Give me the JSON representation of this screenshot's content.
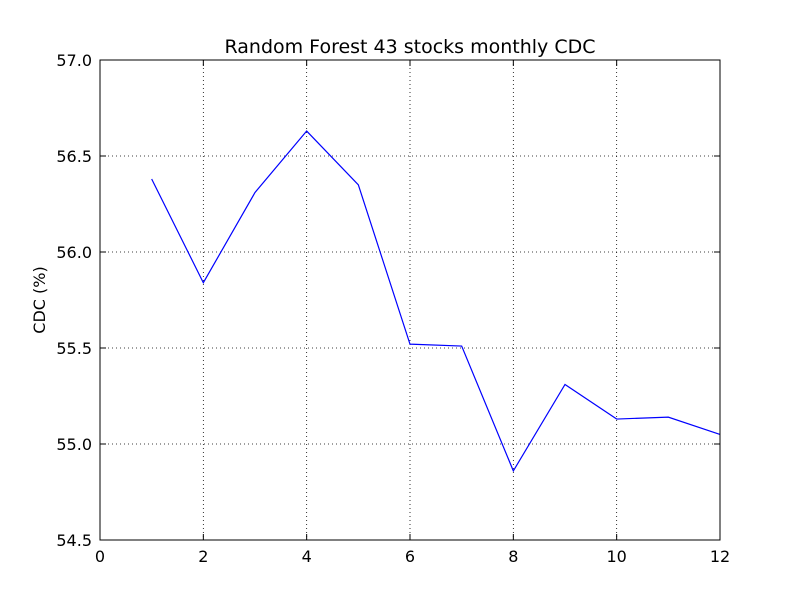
{
  "chart_data": {
    "type": "line",
    "title": "Random Forest 43 stocks monthly CDC",
    "xlabel": "",
    "ylabel": "CDC (%)",
    "xlim": [
      0,
      12
    ],
    "ylim": [
      54.5,
      57.0
    ],
    "x_ticks": [
      0,
      2,
      4,
      6,
      8,
      10,
      12
    ],
    "x_tick_labels": [
      "0",
      "2",
      "4",
      "6",
      "8",
      "10",
      "12"
    ],
    "y_ticks": [
      54.5,
      55.0,
      55.5,
      56.0,
      56.5,
      57.0
    ],
    "y_tick_labels": [
      "54.5",
      "55.0",
      "55.5",
      "56.0",
      "56.5",
      "57.0"
    ],
    "grid": true,
    "series": [
      {
        "color": "#0000ff",
        "x": [
          1,
          2,
          3,
          4,
          5,
          6,
          7,
          8,
          9,
          10,
          11,
          12
        ],
        "y": [
          56.38,
          55.84,
          56.31,
          56.63,
          56.35,
          55.52,
          55.51,
          54.86,
          55.31,
          55.13,
          55.14,
          55.05
        ]
      }
    ]
  }
}
